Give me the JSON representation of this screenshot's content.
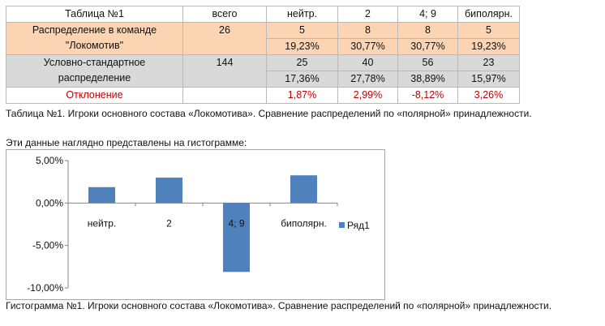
{
  "table": {
    "header": [
      "Таблица №1",
      "всего",
      "нейтр.",
      "2",
      "4; 9",
      "биполярн."
    ],
    "lokomotiv": {
      "label_line1": "Распределение в команде",
      "label_line2": "\"Локомотив\"",
      "total": "26",
      "counts": [
        "5",
        "8",
        "8",
        "5"
      ],
      "percents": [
        "19,23%",
        "30,77%",
        "30,77%",
        "19,23%"
      ]
    },
    "standard": {
      "label_line1": "Условно-стандартное",
      "label_line2": "распределение",
      "total": "144",
      "counts": [
        "25",
        "40",
        "56",
        "23"
      ],
      "percents": [
        "17,36%",
        "27,78%",
        "38,89%",
        "15,97%"
      ]
    },
    "deviation": {
      "label": "Отклонение",
      "values": [
        "1,87%",
        "2,99%",
        "-8,12%",
        "3,26%"
      ]
    }
  },
  "caption_table": "Таблица №1. Игроки основного состава «Локомотива». Сравнение распределений по «полярной» принадлежности.",
  "intro_text": "Эти данные  наглядно представлены на гистограмме:",
  "caption_chart": "Гистограмма №1. Игроки основного состава «Локомотива». Сравнение распределений по «полярной» принадлежности.",
  "colors": {
    "peach": "#fbd4b4",
    "grey": "#d9d9d9",
    "bar": "#4f81bd",
    "negative_text": "#c00000"
  },
  "chart_data": {
    "type": "bar",
    "categories": [
      "нейтр.",
      "2",
      "4; 9",
      "биполярн."
    ],
    "series": [
      {
        "name": "Ряд1",
        "values": [
          1.87,
          2.99,
          -8.12,
          3.26
        ]
      }
    ],
    "ylim": [
      -10,
      5
    ],
    "yticks": [
      5,
      0,
      -5,
      -10
    ],
    "ytick_labels": [
      "5,00%",
      "0,00%",
      "-5,00%",
      "-10,00%"
    ],
    "grid": false,
    "legend": "right"
  }
}
